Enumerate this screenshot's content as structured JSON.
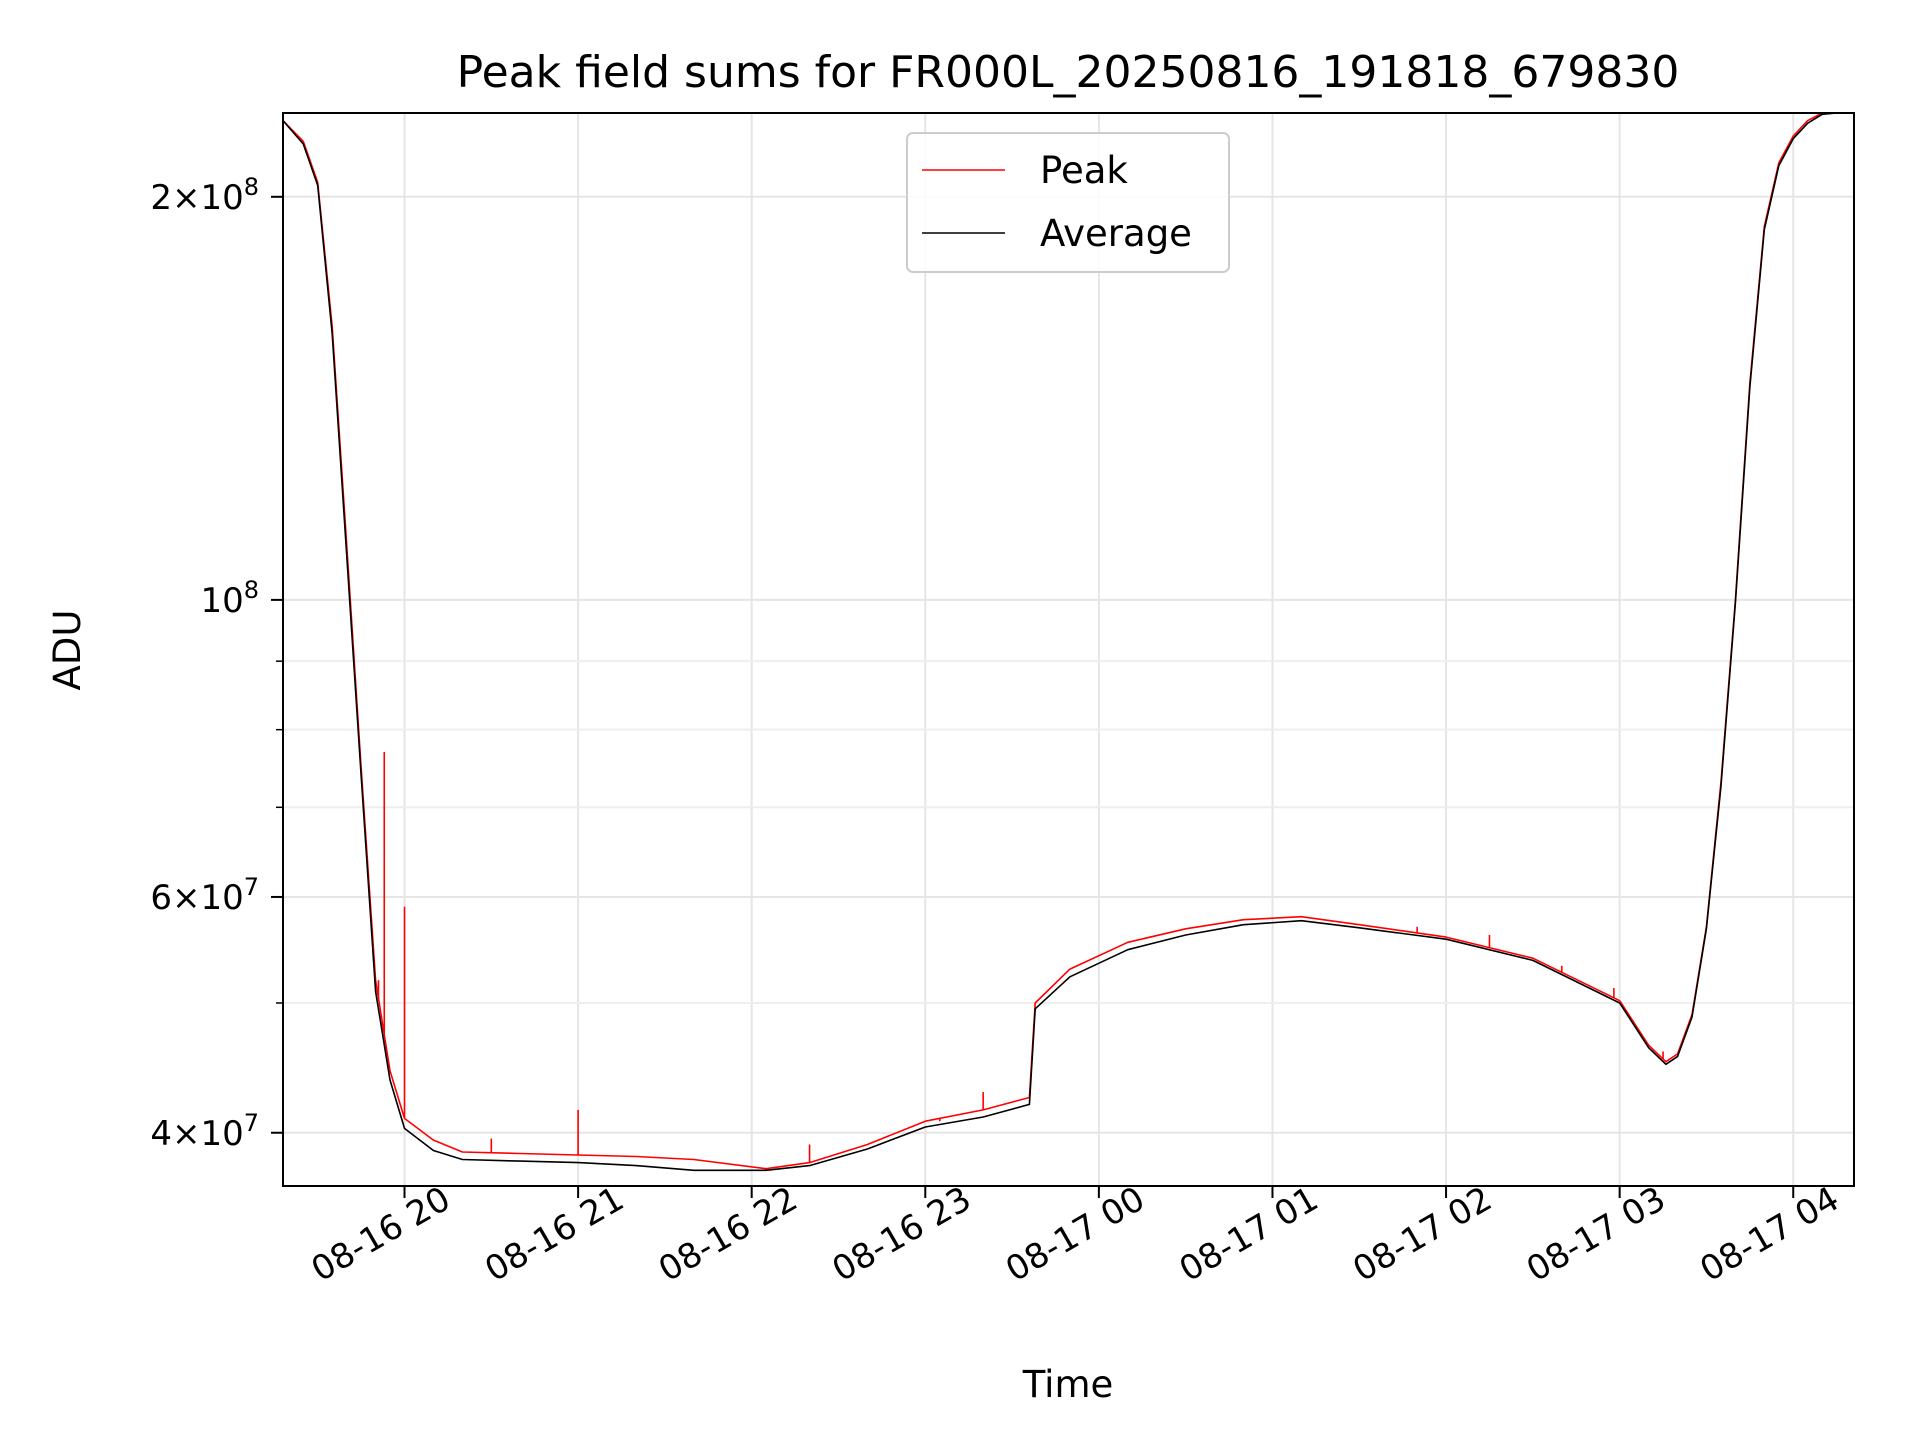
{
  "chart_data": {
    "type": "line",
    "title": "Peak field sums for FR000L_20250816_191818_679830",
    "xlabel": "Time",
    "ylabel": "ADU",
    "yscale": "log",
    "grid": true,
    "legend_position": "top-center",
    "xlim": [
      "2025-08-16 19:18",
      "2025-08-17 04:21"
    ],
    "ylim": [
      36500000,
      231000000
    ],
    "x_ticks": [
      {
        "value": "2025-08-16 20:00",
        "label": "08-16 20"
      },
      {
        "value": "2025-08-16 21:00",
        "label": "08-16 21"
      },
      {
        "value": "2025-08-16 22:00",
        "label": "08-16 22"
      },
      {
        "value": "2025-08-16 23:00",
        "label": "08-16 23"
      },
      {
        "value": "2025-08-17 00:00",
        "label": "08-17 00"
      },
      {
        "value": "2025-08-17 01:00",
        "label": "08-17 01"
      },
      {
        "value": "2025-08-17 02:00",
        "label": "08-17 02"
      },
      {
        "value": "2025-08-17 03:00",
        "label": "08-17 03"
      },
      {
        "value": "2025-08-17 04:00",
        "label": "08-17 04"
      }
    ],
    "y_ticks": [
      {
        "value": 40000000,
        "base": "4",
        "exp": "7"
      },
      {
        "value": 60000000,
        "base": "6",
        "exp": "7"
      },
      {
        "value": 100000000,
        "base": "",
        "exp": "8"
      },
      {
        "value": 200000000,
        "base": "2",
        "exp": "8"
      }
    ],
    "y_minor_ticks": [
      50000000,
      70000000,
      80000000,
      90000000
    ],
    "series": [
      {
        "name": "Peak",
        "color": "#ff0000",
        "x": [
          "2025-08-16 19:18",
          "2025-08-16 19:25",
          "2025-08-16 19:30",
          "2025-08-16 19:35",
          "2025-08-16 19:40",
          "2025-08-16 19:45",
          "2025-08-16 19:50",
          "2025-08-16 19:55",
          "2025-08-16 20:00",
          "2025-08-16 20:10",
          "2025-08-16 20:20",
          "2025-08-16 20:40",
          "2025-08-16 21:00",
          "2025-08-16 21:20",
          "2025-08-16 21:40",
          "2025-08-16 22:05",
          "2025-08-16 22:20",
          "2025-08-16 22:40",
          "2025-08-16 23:00",
          "2025-08-16 23:20",
          "2025-08-16 23:36",
          "2025-08-16 23:38",
          "2025-08-16 23:50",
          "2025-08-17 00:10",
          "2025-08-17 00:30",
          "2025-08-17 00:50",
          "2025-08-17 01:10",
          "2025-08-17 01:30",
          "2025-08-17 02:00",
          "2025-08-17 02:30",
          "2025-08-17 03:00",
          "2025-08-17 03:10",
          "2025-08-17 03:16",
          "2025-08-17 03:20",
          "2025-08-17 03:25",
          "2025-08-17 03:30",
          "2025-08-17 03:35",
          "2025-08-17 03:40",
          "2025-08-17 03:45",
          "2025-08-17 03:50",
          "2025-08-17 03:55",
          "2025-08-17 04:00",
          "2025-08-17 04:05",
          "2025-08-17 04:10",
          "2025-08-17 04:15",
          "2025-08-17 04:21"
        ],
        "y": [
          228000000,
          220000000,
          205000000,
          160000000,
          110000000,
          75000000,
          52000000,
          44500000,
          41000000,
          39500000,
          38700000,
          38600000,
          38500000,
          38400000,
          38200000,
          37600000,
          38000000,
          39200000,
          40800000,
          41600000,
          42500000,
          50000000,
          53000000,
          55500000,
          56800000,
          57700000,
          58000000,
          57200000,
          56000000,
          54000000,
          50200000,
          46500000,
          45200000,
          45800000,
          49000000,
          57000000,
          73000000,
          100000000,
          145000000,
          190000000,
          212000000,
          222000000,
          228000000,
          231000000,
          231000000,
          231000000
        ],
        "spikes": [
          {
            "x": "2025-08-16 19:51",
            "y": 52000000
          },
          {
            "x": "2025-08-16 19:53",
            "y": 77000000
          },
          {
            "x": "2025-08-16 20:00",
            "y": 59000000
          },
          {
            "x": "2025-08-16 20:30",
            "y": 39600000
          },
          {
            "x": "2025-08-16 21:00",
            "y": 41600000
          },
          {
            "x": "2025-08-16 22:20",
            "y": 39200000
          },
          {
            "x": "2025-08-16 23:05",
            "y": 40800000
          },
          {
            "x": "2025-08-16 23:20",
            "y": 42900000
          },
          {
            "x": "2025-08-17 01:50",
            "y": 57000000
          },
          {
            "x": "2025-08-17 02:15",
            "y": 56200000
          },
          {
            "x": "2025-08-17 02:40",
            "y": 53300000
          },
          {
            "x": "2025-08-17 02:58",
            "y": 51300000
          },
          {
            "x": "2025-08-17 03:15",
            "y": 46000000
          }
        ]
      },
      {
        "name": "Average",
        "color": "#000000",
        "x": [
          "2025-08-16 19:18",
          "2025-08-16 19:25",
          "2025-08-16 19:30",
          "2025-08-16 19:35",
          "2025-08-16 19:40",
          "2025-08-16 19:45",
          "2025-08-16 19:50",
          "2025-08-16 19:55",
          "2025-08-16 20:00",
          "2025-08-16 20:10",
          "2025-08-16 20:20",
          "2025-08-16 20:40",
          "2025-08-16 21:00",
          "2025-08-16 21:20",
          "2025-08-16 21:40",
          "2025-08-16 22:05",
          "2025-08-16 22:20",
          "2025-08-16 22:40",
          "2025-08-16 23:00",
          "2025-08-16 23:20",
          "2025-08-16 23:36",
          "2025-08-16 23:38",
          "2025-08-16 23:50",
          "2025-08-17 00:10",
          "2025-08-17 00:30",
          "2025-08-17 00:50",
          "2025-08-17 01:10",
          "2025-08-17 01:30",
          "2025-08-17 02:00",
          "2025-08-17 02:30",
          "2025-08-17 03:00",
          "2025-08-17 03:10",
          "2025-08-17 03:16",
          "2025-08-17 03:20",
          "2025-08-17 03:25",
          "2025-08-17 03:30",
          "2025-08-17 03:35",
          "2025-08-17 03:40",
          "2025-08-17 03:45",
          "2025-08-17 03:50",
          "2025-08-17 03:55",
          "2025-08-17 04:00",
          "2025-08-17 04:05",
          "2025-08-17 04:10",
          "2025-08-17 04:15",
          "2025-08-17 04:21"
        ],
        "y": [
          228000000,
          219000000,
          204000000,
          158000000,
          108000000,
          74000000,
          51000000,
          43800000,
          40300000,
          38800000,
          38200000,
          38100000,
          38000000,
          37800000,
          37500000,
          37500000,
          37800000,
          38900000,
          40400000,
          41100000,
          42000000,
          49500000,
          52300000,
          54800000,
          56200000,
          57200000,
          57600000,
          56900000,
          55800000,
          53800000,
          50000000,
          46300000,
          45000000,
          45600000,
          48800000,
          56800000,
          72500000,
          99500000,
          144000000,
          189000000,
          211000000,
          221000000,
          227000000,
          230500000,
          231000000,
          231000000
        ]
      }
    ]
  }
}
